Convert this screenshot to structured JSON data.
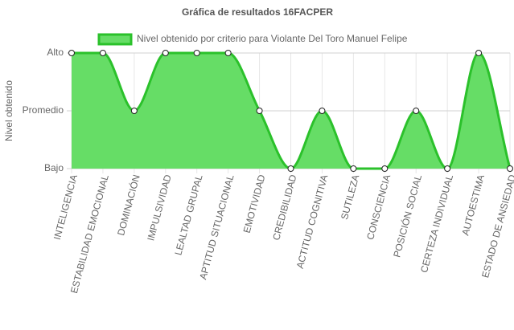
{
  "chart_data": {
    "type": "line",
    "title": "Gráfica de resultados 16FACPER",
    "y_label": "Nivel obtenido",
    "categories": [
      "INTELIGENCIA",
      "ESTABILIDAD EMOCIONAL",
      "DOMINACIÓN",
      "IMPULSIVIDAD",
      "LEALTAD GRUPAL",
      "APTITUD SITUACIONAL",
      "EMOTIVIDAD",
      "CREDIBILIDAD",
      "ACTITUD COGNITIVA",
      "SUTILEZA",
      "CONSCIENCIA",
      "POSICIÓN SOCIAL",
      "CERTEZA INDIVIDUAL",
      "AUTOESTIMA",
      "ESTADO DE ANSIEDAD"
    ],
    "series": [
      {
        "name": "Nivel obtenido por criterio para Violante Del Toro Manuel Felipe",
        "color": "#2bc12b",
        "fill": "#66dd66",
        "values": [
          3,
          3,
          2,
          3,
          3,
          3,
          2,
          1,
          2,
          1,
          1,
          2,
          1,
          3,
          1
        ]
      }
    ],
    "ylim": [
      1,
      3
    ],
    "yticks": [
      {
        "value": 1,
        "label": "Bajo"
      },
      {
        "value": 2,
        "label": "Promedio"
      },
      {
        "value": 3,
        "label": "Alto"
      }
    ],
    "grid": true,
    "legend": "top"
  }
}
